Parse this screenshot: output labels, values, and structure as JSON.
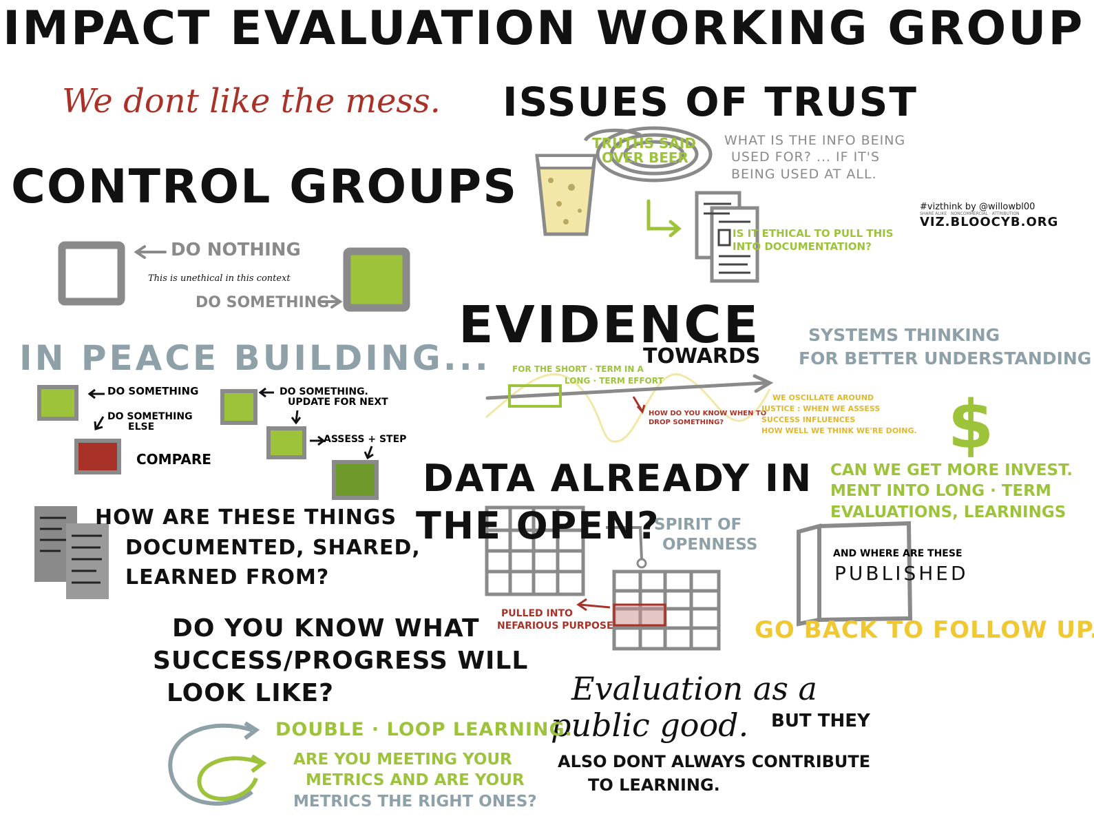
{
  "title": "IMPACT EVALUATION WORKING GROUP",
  "mess_quote": "We dont like the mess.",
  "trust": {
    "heading": "ISSUES OF TRUST",
    "beer_note": [
      "TRUTHS SAID",
      "OVER BEER"
    ],
    "info_question": [
      "WHAT IS THE INFO BEING",
      "USED FOR? ... IF IT'S",
      "BEING USED AT ALL."
    ],
    "ethical_question": [
      "IS IT ETHICAL TO PULL THIS",
      "INTO DOCUMENTATION?"
    ]
  },
  "credit": {
    "tag": "#vizthink by @willowbl00",
    "license": "SHARE ALIKE · NONCOMMERCIAL · ATTRIBUTION",
    "site": "VIZ.BLOOCYB.ORG"
  },
  "control": {
    "heading": "CONTROL GROUPS",
    "do_nothing": "DO NOTHING",
    "unethical_note": "This is unethical in this context",
    "do_something": "DO SOMETHING"
  },
  "peace": {
    "heading": "IN PEACE BUILDING...",
    "do_something": "DO SOMETHING",
    "do_something_else": [
      "DO SOMETHING",
      "ELSE"
    ],
    "compare": "COMPARE",
    "update_next": [
      "DO SOMETHING.",
      "UPDATE FOR NEXT"
    ],
    "assess_step": "ASSESS + STEP"
  },
  "documented": [
    "HOW ARE THESE THINGS",
    "DOCUMENTED, SHARED,",
    "LEARNED FROM?"
  ],
  "evidence": {
    "heading": "EVIDENCE",
    "towards": "TOWARDS",
    "short_term": [
      "FOR THE SHORT · TERM IN A",
      "LONG · TERM EFFORT"
    ],
    "drop_question": [
      "HOW DO YOU KNOW WHEN TO",
      "DROP SOMETHING?"
    ],
    "oscillate": [
      "WE OSCILLATE AROUND",
      "JUSTICE : WHEN WE ASSESS",
      "SUCCESS INFLUENCES",
      "HOW WELL WE THINK WE'RE DOING."
    ]
  },
  "systems": [
    "SYSTEMS THINKING",
    "FOR BETTER UNDERSTANDING"
  ],
  "investment": {
    "symbol": "$",
    "text": [
      "CAN WE GET MORE INVEST.",
      "MENT INTO LONG · TERM",
      "EVALUATIONS, LEARNINGS"
    ]
  },
  "data_open": {
    "heading": [
      "DATA ALREADY IN",
      "THE OPEN?"
    ],
    "spirit": [
      "SPIRIT OF",
      "OPENNESS"
    ],
    "nefarious": [
      "PULLED INTO",
      "NEFARIOUS PURPOSE"
    ]
  },
  "published": {
    "small": "AND WHERE ARE THESE",
    "big": "PUBLISHED"
  },
  "follow_up": "GO BACK TO FOLLOW UP.",
  "success": [
    "DO YOU KNOW WHAT",
    "SUCCESS/PROGRESS WILL",
    "LOOK LIKE?"
  ],
  "public_good": {
    "script": [
      "Evaluation as a",
      "public good."
    ],
    "rest": [
      "BUT THEY",
      "ALSO DONT ALWAYS CONTRIBUTE",
      "TO LEARNING."
    ]
  },
  "double_loop": {
    "heading": "DOUBLE · LOOP LEARNING.",
    "question": [
      "ARE YOU MEETING YOUR",
      "METRICS AND ARE YOUR",
      "METRICS THE RIGHT ONES?"
    ]
  },
  "colors": {
    "ink": "#111111",
    "green": "#9dc33b",
    "dark_green": "#6d9a2b",
    "red": "#a83228",
    "gray": "#8a8a8a",
    "blue_gray": "#8ea0a8",
    "yellow": "#f0c832",
    "pale_yellow": "#f2e7a6"
  }
}
